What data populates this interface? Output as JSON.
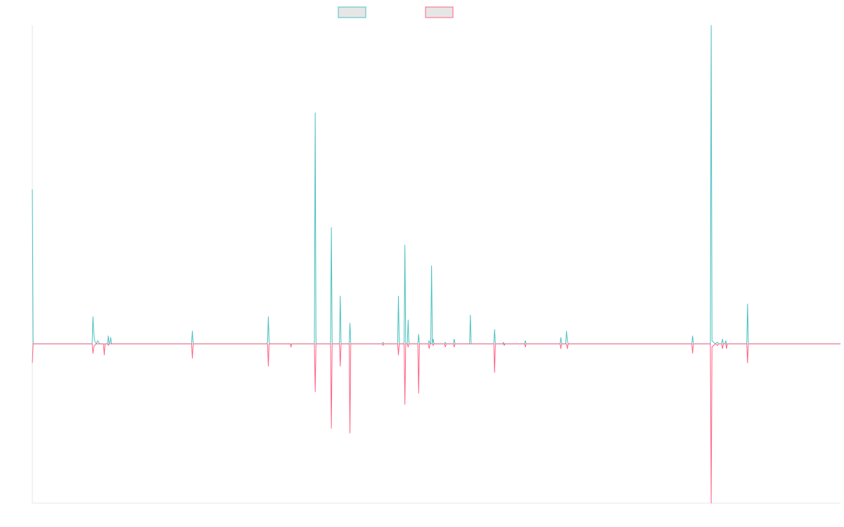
{
  "colors": {
    "background": "#ffffff",
    "axis": "#e6e6e6",
    "legend_fill": "#e6e6e6"
  },
  "chart_data": {
    "type": "line",
    "title": "",
    "xlabel": "",
    "ylabel": "",
    "ylim": [
      -100,
      200
    ],
    "xlim": [
      0,
      1000
    ],
    "grid": false,
    "legend": "top-center",
    "series": [
      {
        "color": "#4bc0c0",
        "points": [
          [
            0,
            97
          ],
          [
            1,
            0
          ],
          [
            51,
            0
          ],
          [
            52,
            0
          ],
          [
            74,
            0
          ],
          [
            75,
            17
          ],
          [
            76,
            7
          ],
          [
            77,
            2
          ],
          [
            79,
            0
          ],
          [
            81,
            2
          ],
          [
            82,
            1
          ],
          [
            83,
            0
          ],
          [
            88,
            0
          ],
          [
            89,
            0
          ],
          [
            93,
            0
          ],
          [
            94,
            5
          ],
          [
            95,
            0
          ],
          [
            96,
            1
          ],
          [
            97,
            4
          ],
          [
            98,
            0
          ],
          [
            197,
            0
          ],
          [
            198,
            8
          ],
          [
            199,
            0
          ],
          [
            244,
            0
          ],
          [
            245,
            0
          ],
          [
            290,
            0
          ],
          [
            291,
            1
          ],
          [
            292,
            17
          ],
          [
            293,
            1
          ],
          [
            294,
            0
          ],
          [
            303,
            0
          ],
          [
            304,
            0
          ],
          [
            318,
            0
          ],
          [
            319,
            0
          ],
          [
            339,
            0
          ],
          [
            340,
            0
          ],
          [
            341,
            0
          ],
          [
            349,
            0
          ],
          [
            350,
            145
          ],
          [
            351,
            0
          ],
          [
            369,
            0
          ],
          [
            370,
            73
          ],
          [
            371,
            0
          ],
          [
            380,
            0
          ],
          [
            381,
            30
          ],
          [
            382,
            0
          ],
          [
            392,
            0
          ],
          [
            393,
            13
          ],
          [
            394,
            0
          ],
          [
            402,
            0
          ],
          [
            403,
            0
          ],
          [
            405,
            0
          ],
          [
            406,
            0
          ],
          [
            433,
            0
          ],
          [
            434,
            1
          ],
          [
            435,
            0
          ],
          [
            452,
            0
          ],
          [
            453,
            30
          ],
          [
            454,
            0
          ],
          [
            455,
            0
          ],
          [
            457,
            0
          ],
          [
            460,
            0
          ],
          [
            461,
            62
          ],
          [
            462,
            0
          ],
          [
            464,
            0
          ],
          [
            465,
            15
          ],
          [
            466,
            0
          ],
          [
            477,
            0
          ],
          [
            478,
            6
          ],
          [
            479,
            0
          ],
          [
            490,
            0
          ],
          [
            491,
            2
          ],
          [
            492,
            0
          ],
          [
            493,
            0
          ],
          [
            494,
            49
          ],
          [
            495,
            0
          ],
          [
            496,
            3
          ],
          [
            497,
            0
          ],
          [
            510,
            0
          ],
          [
            511,
            1
          ],
          [
            512,
            0
          ],
          [
            521,
            0
          ],
          [
            522,
            3
          ],
          [
            523,
            0
          ],
          [
            541,
            0
          ],
          [
            542,
            18
          ],
          [
            543,
            0
          ],
          [
            571,
            0
          ],
          [
            572,
            9
          ],
          [
            573,
            0
          ],
          [
            582,
            0
          ],
          [
            583,
            1
          ],
          [
            584,
            0
          ],
          [
            609,
            0
          ],
          [
            610,
            2
          ],
          [
            611,
            0
          ],
          [
            653,
            0
          ],
          [
            654,
            4
          ],
          [
            655,
            0
          ],
          [
            660,
            0
          ],
          [
            661,
            8
          ],
          [
            662,
            2
          ],
          [
            663,
            0
          ],
          [
            685,
            0
          ],
          [
            686,
            0
          ],
          [
            816,
            0
          ],
          [
            817,
            5
          ],
          [
            818,
            0
          ],
          [
            839,
            0
          ],
          [
            840,
            200
          ],
          [
            841,
            2
          ],
          [
            843,
            1
          ],
          [
            845,
            0
          ],
          [
            848,
            1
          ],
          [
            849,
            0
          ],
          [
            853,
            0
          ],
          [
            854,
            3
          ],
          [
            855,
            0
          ],
          [
            857,
            0
          ],
          [
            858,
            2
          ],
          [
            859,
            0
          ],
          [
            884,
            0
          ],
          [
            885,
            25
          ],
          [
            886,
            0
          ],
          [
            1000,
            0
          ]
        ]
      },
      {
        "color": "#ff6384",
        "points": [
          [
            0,
            -12
          ],
          [
            1,
            0
          ],
          [
            51,
            0
          ],
          [
            52,
            0
          ],
          [
            74,
            0
          ],
          [
            75,
            -6
          ],
          [
            76,
            -2
          ],
          [
            77,
            -1
          ],
          [
            79,
            0
          ],
          [
            88,
            0
          ],
          [
            89,
            -7
          ],
          [
            90,
            0
          ],
          [
            93,
            0
          ],
          [
            94,
            -1
          ],
          [
            95,
            0
          ],
          [
            197,
            0
          ],
          [
            198,
            -9
          ],
          [
            199,
            0
          ],
          [
            244,
            0
          ],
          [
            245,
            0
          ],
          [
            291,
            0
          ],
          [
            292,
            -14
          ],
          [
            293,
            0
          ],
          [
            319,
            0
          ],
          [
            320,
            -2
          ],
          [
            321,
            0
          ],
          [
            339,
            0
          ],
          [
            340,
            0
          ],
          [
            341,
            0
          ],
          [
            349,
            0
          ],
          [
            350,
            -30
          ],
          [
            351,
            0
          ],
          [
            369,
            0
          ],
          [
            370,
            -53
          ],
          [
            371,
            0
          ],
          [
            380,
            0
          ],
          [
            381,
            -14
          ],
          [
            382,
            0
          ],
          [
            392,
            0
          ],
          [
            393,
            -56
          ],
          [
            394,
            0
          ],
          [
            405,
            0
          ],
          [
            406,
            0
          ],
          [
            433,
            0
          ],
          [
            434,
            -1
          ],
          [
            435,
            0
          ],
          [
            452,
            0
          ],
          [
            453,
            -7
          ],
          [
            454,
            0
          ],
          [
            460,
            0
          ],
          [
            461,
            -38
          ],
          [
            462,
            0
          ],
          [
            464,
            0
          ],
          [
            465,
            -2
          ],
          [
            466,
            0
          ],
          [
            477,
            0
          ],
          [
            478,
            -31
          ],
          [
            479,
            0
          ],
          [
            490,
            0
          ],
          [
            491,
            -3
          ],
          [
            492,
            0
          ],
          [
            495,
            0
          ],
          [
            496,
            -1
          ],
          [
            497,
            0
          ],
          [
            510,
            0
          ],
          [
            511,
            -2
          ],
          [
            512,
            0
          ],
          [
            521,
            0
          ],
          [
            522,
            -2
          ],
          [
            523,
            0
          ],
          [
            571,
            0
          ],
          [
            572,
            -18
          ],
          [
            573,
            0
          ],
          [
            583,
            0
          ],
          [
            584,
            -1
          ],
          [
            585,
            0
          ],
          [
            609,
            0
          ],
          [
            610,
            -2
          ],
          [
            611,
            0
          ],
          [
            653,
            0
          ],
          [
            654,
            -3
          ],
          [
            655,
            0
          ],
          [
            661,
            0
          ],
          [
            662,
            -3
          ],
          [
            663,
            0
          ],
          [
            685,
            0
          ],
          [
            686,
            0
          ],
          [
            816,
            0
          ],
          [
            817,
            -6
          ],
          [
            818,
            0
          ],
          [
            839,
            0
          ],
          [
            840,
            -100
          ],
          [
            841,
            -2
          ],
          [
            843,
            -1
          ],
          [
            845,
            0
          ],
          [
            848,
            -1
          ],
          [
            849,
            0
          ],
          [
            853,
            0
          ],
          [
            854,
            -3
          ],
          [
            855,
            0
          ],
          [
            858,
            0
          ],
          [
            859,
            -3
          ],
          [
            860,
            0
          ],
          [
            884,
            0
          ],
          [
            885,
            -12
          ],
          [
            886,
            0
          ],
          [
            1000,
            0
          ]
        ]
      }
    ]
  }
}
